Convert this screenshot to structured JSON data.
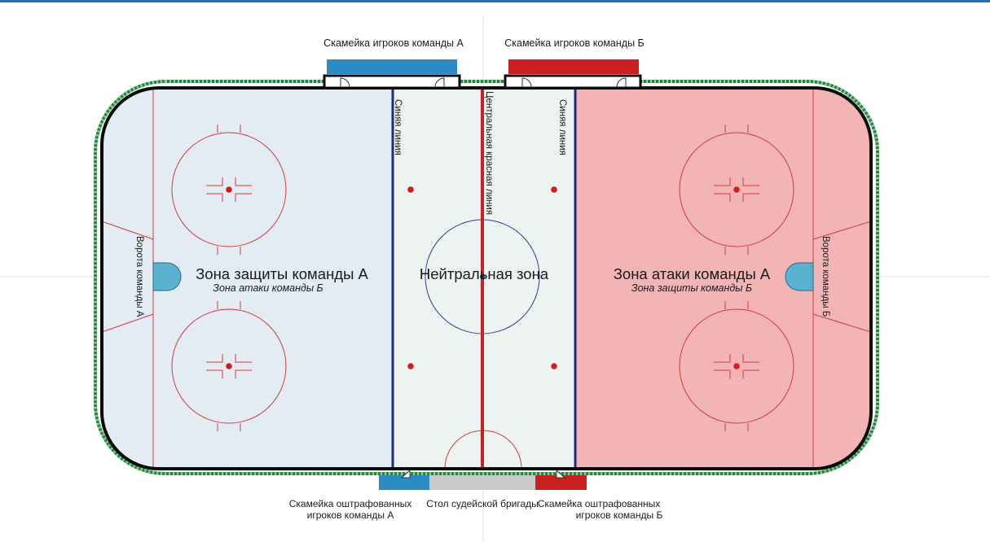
{
  "labels": {
    "bench_a": "Скамейка игроков команды А",
    "bench_b": "Скамейка игроков команды Б",
    "blue_line_left": "Синяя линия",
    "blue_line_right": "Синяя линия",
    "center_red_line": "Центральная красная линия",
    "goal_a": "Ворота команды А",
    "goal_b": "Ворота команды Б",
    "zone_left_main": "Зона защиты команды А",
    "zone_left_sub": "Зона атаки команды Б",
    "zone_neutral": "Нейтральная зона",
    "zone_right_main": "Зона атаки команды А",
    "zone_right_sub": "Зона защиты команды Б",
    "penalty_a_line1": "Скамейка оштрафованных",
    "penalty_a_line2": "игроков команды А",
    "officials_table": "Стол судейской бригады",
    "penalty_b_line1": "Скамейка оштрафованных",
    "penalty_b_line2": "игроков команды Б"
  },
  "colors": {
    "top_rule": "#2e6da4",
    "rink_border": "#0a0a0a",
    "outer_fence": "#1f8a3b",
    "zone_left": "#e3ebf3",
    "zone_neutral": "#ecf3f0",
    "zone_right": "#f2b4b4",
    "blue_line": "#1c2f7a",
    "red_line": "#cc1f1f",
    "marking_red": "#d23b3b",
    "center_circle": "#2a3f9a",
    "goal_crease": "#5bb2d0",
    "bench_a": "#2b8cc4",
    "bench_b": "#cc1f1f",
    "officials_table": "#c9c9c9"
  }
}
